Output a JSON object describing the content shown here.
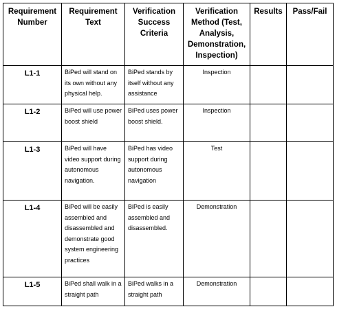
{
  "headers": [
    "Requirement Number",
    "Requirement Text",
    "Verification Success Criteria",
    "Verification Method (Test, Analysis, Demonstration, Inspection)",
    "Results",
    "Pass/Fail"
  ],
  "rows": [
    {
      "number": "L1-1",
      "text": "BiPed will stand on its own without any physical help.",
      "criteria": "BiPed stands by itself without any assistance",
      "method": "Inspection",
      "results": "",
      "pass_fail": ""
    },
    {
      "number": "L1-2",
      "text": "BiPed will use power boost shield",
      "criteria": "BiPed uses power boost shield.",
      "method": "Inspection",
      "results": "",
      "pass_fail": ""
    },
    {
      "number": "L1-3",
      "text": "BiPed will have video support during autonomous navigation.",
      "criteria": "BiPed has video support during autonomous navigation",
      "method": "Test",
      "results": "",
      "pass_fail": ""
    },
    {
      "number": "L1-4",
      "text": "BiPed will be easily assembled and disassembled and demonstrate good system engineering practices",
      "criteria": "BiPed is easily assembled and disassembled.",
      "method": "Demonstration",
      "results": "",
      "pass_fail": ""
    },
    {
      "number": "L1-5",
      "text": "BiPed shall walk in a straight path",
      "criteria": "BiPed walks in a straight path",
      "method": "Demonstration",
      "results": "",
      "pass_fail": ""
    }
  ]
}
